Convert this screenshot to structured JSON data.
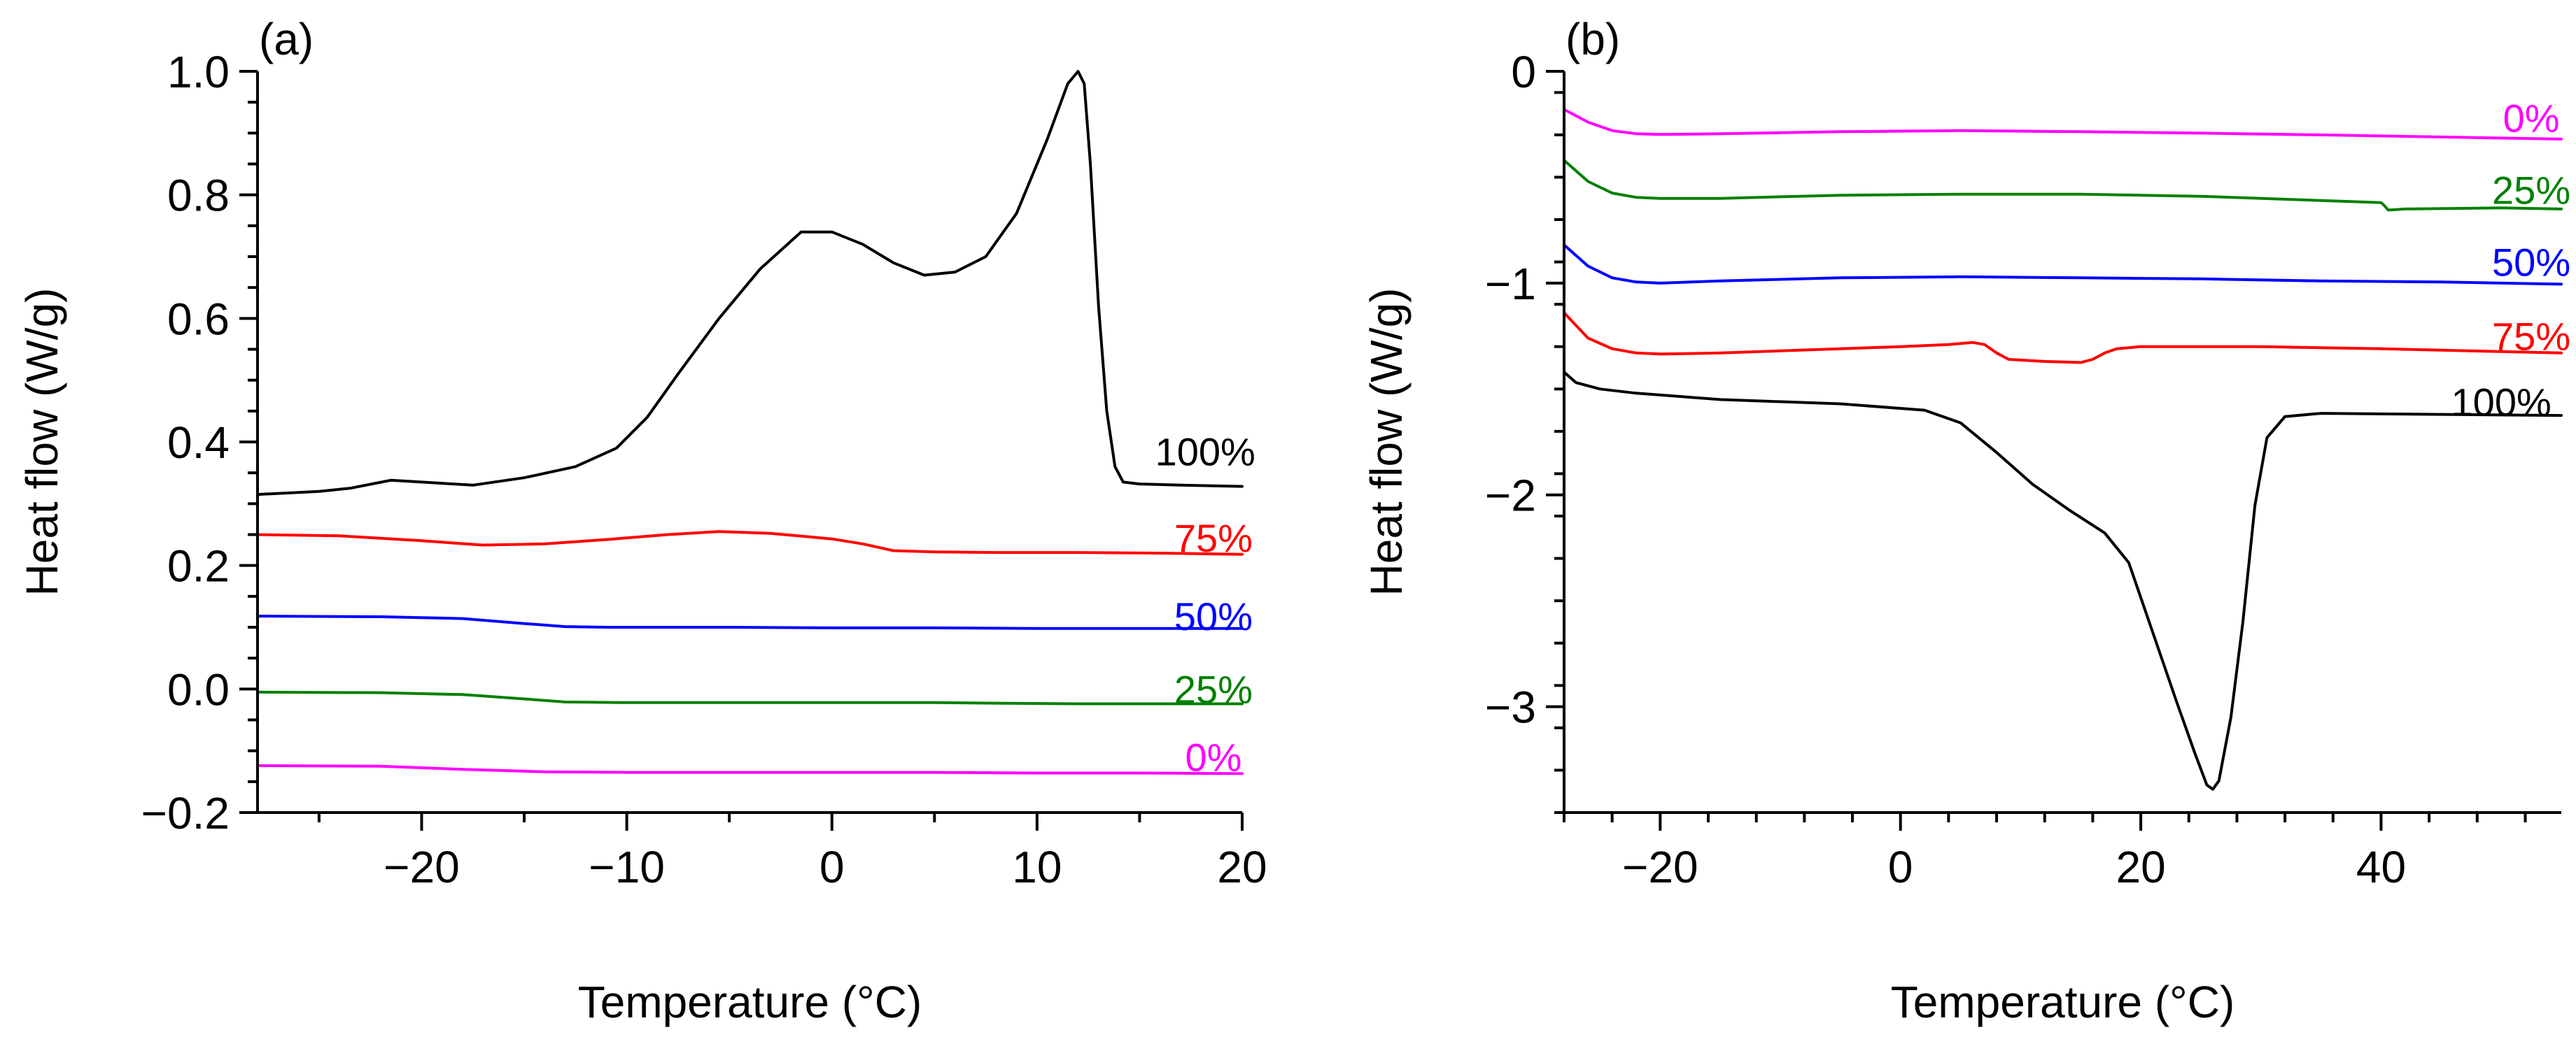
{
  "chart_data": [
    {
      "type": "line",
      "panel_label": "(a)",
      "xlabel": "Temperature (°C)",
      "ylabel": "Heat flow (W/g)",
      "xlim": [
        -28,
        20
      ],
      "ylim": [
        -0.2,
        1.0
      ],
      "x_ticks": [
        {
          "value": -20,
          "label": "−20"
        },
        {
          "value": -10,
          "label": "−10"
        },
        {
          "value": 0,
          "label": "0"
        },
        {
          "value": 10,
          "label": "10"
        },
        {
          "value": 20,
          "label": "20"
        }
      ],
      "y_ticks": [
        {
          "value": -0.2,
          "label": "−0.2"
        },
        {
          "value": 0.0,
          "label": "0.0"
        },
        {
          "value": 0.2,
          "label": "0.2"
        },
        {
          "value": 0.4,
          "label": "0.4"
        },
        {
          "value": 0.6,
          "label": "0.6"
        },
        {
          "value": 0.8,
          "label": "0.8"
        },
        {
          "value": 1.0,
          "label": "1.0"
        }
      ],
      "grid": false,
      "series": [
        {
          "name": "100%",
          "color": "#000000",
          "label_at": [
            18.2,
            0.385
          ],
          "x": [
            -28,
            -25,
            -23.5,
            -21.5,
            -19.5,
            -17.5,
            -15,
            -12.5,
            -10.5,
            -9,
            -7.5,
            -5.5,
            -3.5,
            -1.5,
            0,
            1.5,
            3,
            4.5,
            6,
            7.5,
            9,
            10.5,
            11.5,
            12,
            12.3,
            12.6,
            13,
            13.4,
            13.8,
            14.2,
            15,
            17,
            20
          ],
          "y": [
            0.315,
            0.32,
            0.325,
            0.338,
            0.334,
            0.33,
            0.342,
            0.36,
            0.39,
            0.44,
            0.51,
            0.6,
            0.68,
            0.74,
            0.74,
            0.72,
            0.69,
            0.67,
            0.675,
            0.7,
            0.77,
            0.89,
            0.98,
            1.0,
            0.98,
            0.85,
            0.62,
            0.45,
            0.36,
            0.335,
            0.332,
            0.33,
            0.328
          ]
        },
        {
          "name": "75%",
          "color": "#ff0000",
          "label_at": [
            18.6,
            0.245
          ],
          "x": [
            -28,
            -24,
            -20,
            -17,
            -14,
            -11,
            -8,
            -5.5,
            -3,
            0,
            1.5,
            3,
            5,
            8,
            12,
            16,
            20
          ],
          "y": [
            0.25,
            0.248,
            0.24,
            0.233,
            0.235,
            0.242,
            0.25,
            0.255,
            0.252,
            0.243,
            0.235,
            0.224,
            0.222,
            0.221,
            0.221,
            0.22,
            0.218
          ]
        },
        {
          "name": "50%",
          "color": "#0000ff",
          "label_at": [
            18.6,
            0.118
          ],
          "x": [
            -28,
            -22,
            -18,
            -15,
            -13,
            -11,
            -5,
            0,
            5,
            10,
            15,
            20
          ],
          "y": [
            0.118,
            0.117,
            0.114,
            0.106,
            0.101,
            0.1,
            0.1,
            0.099,
            0.099,
            0.098,
            0.098,
            0.098
          ]
        },
        {
          "name": "25%",
          "color": "#008000",
          "label_at": [
            18.6,
            0.0
          ],
          "x": [
            -28,
            -22,
            -18,
            -15,
            -13,
            -10,
            -5,
            0,
            5,
            8,
            12,
            16,
            20
          ],
          "y": [
            -0.005,
            -0.006,
            -0.009,
            -0.016,
            -0.021,
            -0.022,
            -0.022,
            -0.022,
            -0.022,
            -0.023,
            -0.024,
            -0.024,
            -0.024
          ]
        },
        {
          "name": "0%",
          "color": "#ff00ff",
          "label_at": [
            18.6,
            -0.11
          ],
          "x": [
            -28,
            -22,
            -18,
            -14,
            -10,
            -5,
            0,
            5,
            10,
            15,
            20
          ],
          "y": [
            -0.124,
            -0.125,
            -0.13,
            -0.134,
            -0.135,
            -0.135,
            -0.135,
            -0.135,
            -0.136,
            -0.136,
            -0.137
          ]
        }
      ]
    },
    {
      "type": "line",
      "panel_label": "(b)",
      "xlabel": "Temperature (°C)",
      "ylabel": "Heat flow (W/g)",
      "xlim": [
        -28,
        55
      ],
      "ylim": [
        -3.5,
        0.0
      ],
      "x_ticks": [
        {
          "value": -20,
          "label": "−20"
        },
        {
          "value": 0,
          "label": "0"
        },
        {
          "value": 20,
          "label": "20"
        },
        {
          "value": 40,
          "label": "40"
        }
      ],
      "y_ticks": [
        {
          "value": -3,
          "label": "−3"
        },
        {
          "value": -2,
          "label": "−2"
        },
        {
          "value": -1,
          "label": "−1"
        },
        {
          "value": 0,
          "label": "0"
        }
      ],
      "grid": false,
      "series": [
        {
          "name": "0%",
          "color": "#ff00ff",
          "label_at": [
            52.5,
            -0.22
          ],
          "x": [
            -28,
            -26,
            -24,
            -22,
            -20,
            -15,
            -5,
            5,
            15,
            25,
            35,
            45,
            55
          ],
          "y": [
            -0.18,
            -0.24,
            -0.28,
            -0.295,
            -0.298,
            -0.295,
            -0.285,
            -0.28,
            -0.285,
            -0.292,
            -0.3,
            -0.31,
            -0.32
          ]
        },
        {
          "name": "25%",
          "color": "#008000",
          "label_at": [
            52.5,
            -0.56
          ],
          "x": [
            -28,
            -26,
            -24,
            -22,
            -20,
            -15,
            -5,
            5,
            15,
            25,
            35,
            40,
            40.2,
            40.6,
            42,
            50,
            55
          ],
          "y": [
            -0.42,
            -0.52,
            -0.575,
            -0.595,
            -0.6,
            -0.6,
            -0.585,
            -0.58,
            -0.58,
            -0.59,
            -0.61,
            -0.62,
            -0.63,
            -0.655,
            -0.65,
            -0.645,
            -0.65
          ]
        },
        {
          "name": "50%",
          "color": "#0000ff",
          "label_at": [
            52.5,
            -0.9
          ],
          "x": [
            -28,
            -26,
            -24,
            -22,
            -20,
            -15,
            -5,
            5,
            15,
            25,
            35,
            45,
            55
          ],
          "y": [
            -0.82,
            -0.92,
            -0.975,
            -0.995,
            -1.0,
            -0.99,
            -0.975,
            -0.97,
            -0.975,
            -0.98,
            -0.99,
            -0.995,
            -1.005
          ]
        },
        {
          "name": "75%",
          "color": "#ff0000",
          "label_at": [
            52.5,
            -1.25
          ],
          "x": [
            -28,
            -26,
            -24,
            -22,
            -20,
            -15,
            -5,
            0,
            4,
            6,
            7,
            8,
            9,
            12,
            15,
            16,
            17,
            18,
            20,
            30,
            40,
            55
          ],
          "y": [
            -1.14,
            -1.26,
            -1.31,
            -1.33,
            -1.335,
            -1.33,
            -1.31,
            -1.3,
            -1.29,
            -1.28,
            -1.29,
            -1.33,
            -1.36,
            -1.37,
            -1.375,
            -1.36,
            -1.33,
            -1.31,
            -1.3,
            -1.3,
            -1.31,
            -1.33
          ]
        },
        {
          "name": "100%",
          "color": "#000000",
          "label_at": [
            50,
            -1.56
          ],
          "x": [
            -28,
            -27,
            -25,
            -22,
            -15,
            -5,
            2,
            5,
            8,
            11,
            14,
            17,
            19,
            21,
            23,
            24.5,
            25.5,
            26,
            26.5,
            27.5,
            28.5,
            29.5,
            30.5,
            32,
            35,
            45,
            55
          ],
          "y": [
            -1.42,
            -1.47,
            -1.5,
            -1.52,
            -1.55,
            -1.57,
            -1.6,
            -1.66,
            -1.8,
            -1.95,
            -2.07,
            -2.18,
            -2.32,
            -2.65,
            -2.98,
            -3.22,
            -3.37,
            -3.39,
            -3.35,
            -3.05,
            -2.6,
            -2.05,
            -1.73,
            -1.63,
            -1.615,
            -1.62,
            -1.625
          ]
        }
      ]
    }
  ]
}
